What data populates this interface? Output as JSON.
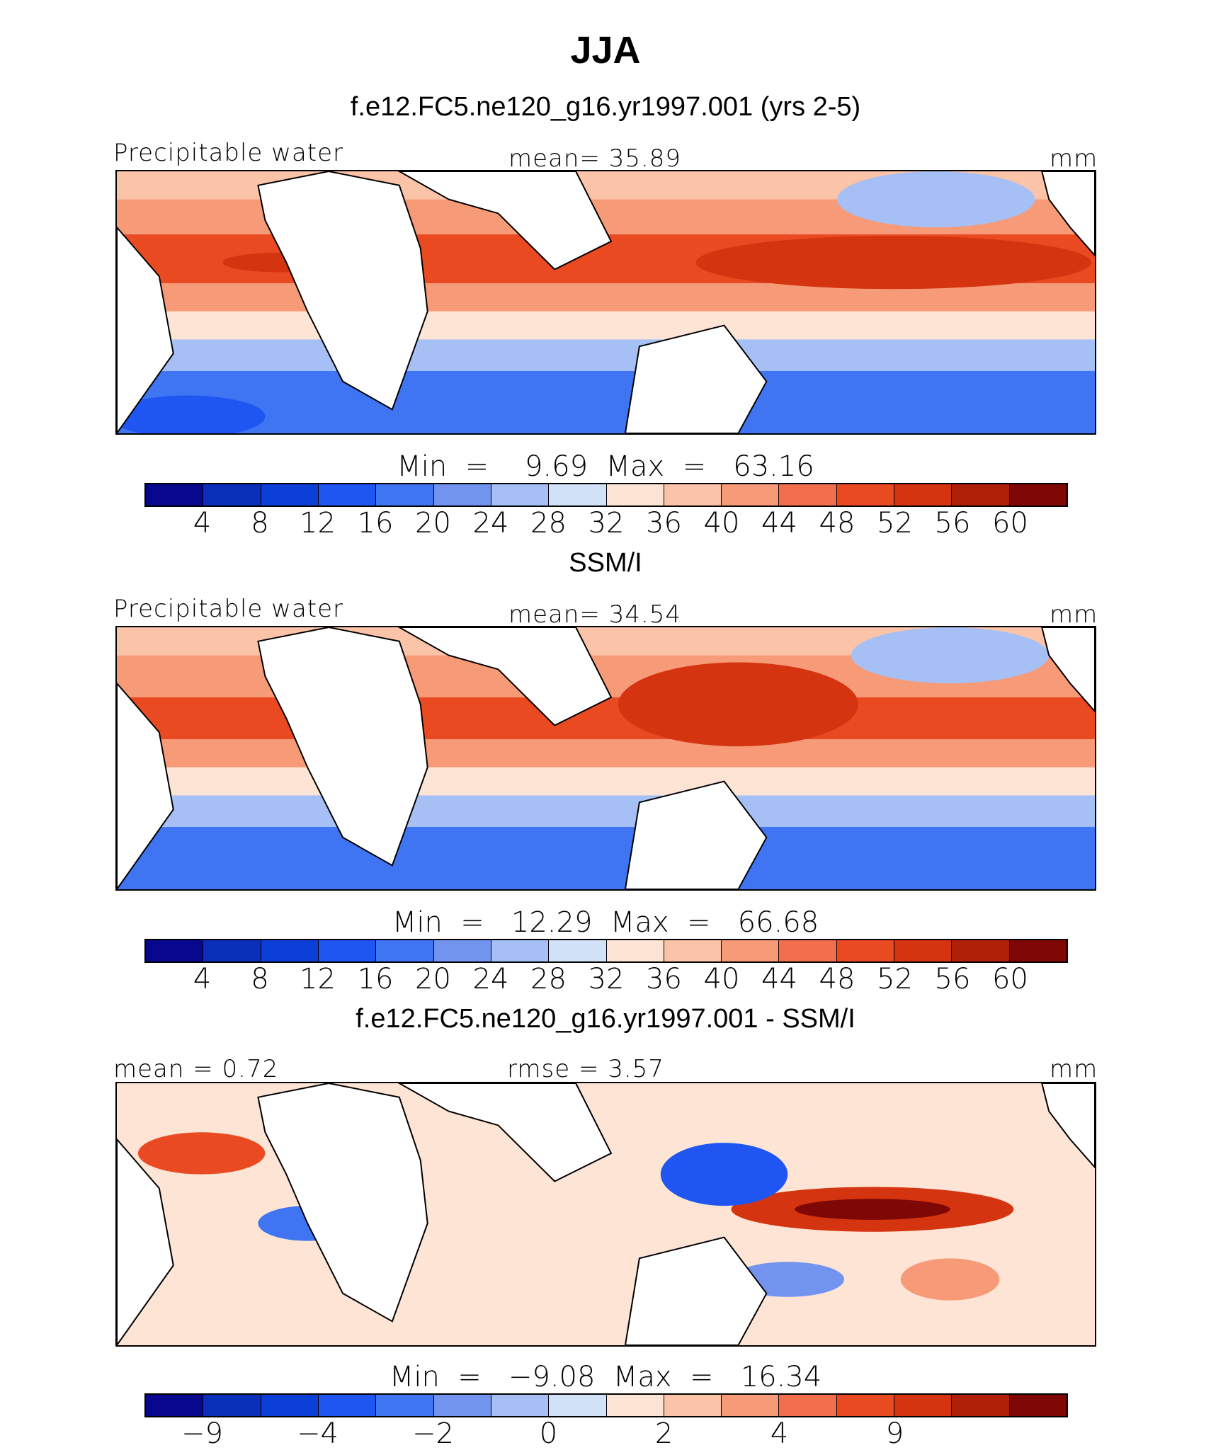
{
  "title": "JJA",
  "palette": [
    "#08088f",
    "#0a2fb8",
    "#0c3fd8",
    "#1f55f0",
    "#3f74f2",
    "#7294ef",
    "#a6bff5",
    "#d1e2f8",
    "#fde4d4",
    "#fbc4a8",
    "#f79a77",
    "#f26e4c",
    "#ea4a22",
    "#d43510",
    "#b01f08",
    "#7f0705"
  ],
  "panels": [
    {
      "subtitle": "f.e12.FC5.ne120_g16.yr1997.001 (yrs 2-5)",
      "left_label": "Precipitable water",
      "center_label": "mean=  35.89",
      "right_label": "mm",
      "minmax": "Min  =    9.69  Max  =   63.16",
      "ticks": [
        "4",
        "8",
        "12",
        "16",
        "20",
        "24",
        "28",
        "32",
        "36",
        "40",
        "44",
        "48",
        "52",
        "56",
        "60"
      ]
    },
    {
      "subtitle": "SSM/I",
      "left_label": "Precipitable water",
      "center_label": "mean=  34.54",
      "right_label": "mm",
      "minmax": "Min  =   12.29  Max  =   66.68",
      "ticks": [
        "4",
        "8",
        "12",
        "16",
        "20",
        "24",
        "28",
        "32",
        "36",
        "40",
        "44",
        "48",
        "52",
        "56",
        "60"
      ]
    },
    {
      "subtitle": "f.e12.FC5.ne120_g16.yr1997.001 - SSM/I",
      "left_label": "mean =    0.72",
      "center_label": "rmse =    3.57",
      "right_label": "mm",
      "minmax": "Min  =   −9.08  Max  =   16.34",
      "ticks": [
        "−9",
        "−4",
        "−2",
        "0",
        "2",
        "4",
        "9"
      ]
    }
  ],
  "chart_data": [
    {
      "type": "heatmap",
      "title": "f.e12.FC5.ne120_g16.yr1997.001 (yrs 2-5)",
      "variable": "Precipitable water",
      "units": "mm",
      "mean": 35.89,
      "min": 9.69,
      "max": 63.16,
      "levels": [
        4,
        8,
        12,
        16,
        20,
        24,
        28,
        32,
        36,
        40,
        44,
        48,
        52,
        56,
        60
      ]
    },
    {
      "type": "heatmap",
      "title": "SSM/I",
      "variable": "Precipitable water",
      "units": "mm",
      "mean": 34.54,
      "min": 12.29,
      "max": 66.68,
      "levels": [
        4,
        8,
        12,
        16,
        20,
        24,
        28,
        32,
        36,
        40,
        44,
        48,
        52,
        56,
        60
      ]
    },
    {
      "type": "heatmap",
      "title": "f.e12.FC5.ne120_g16.yr1997.001 - SSM/I",
      "units": "mm",
      "mean": 0.72,
      "rmse": 3.57,
      "min": -9.08,
      "max": 16.34,
      "levels": [
        -9,
        -4,
        -2,
        0,
        2,
        4,
        9
      ]
    }
  ]
}
